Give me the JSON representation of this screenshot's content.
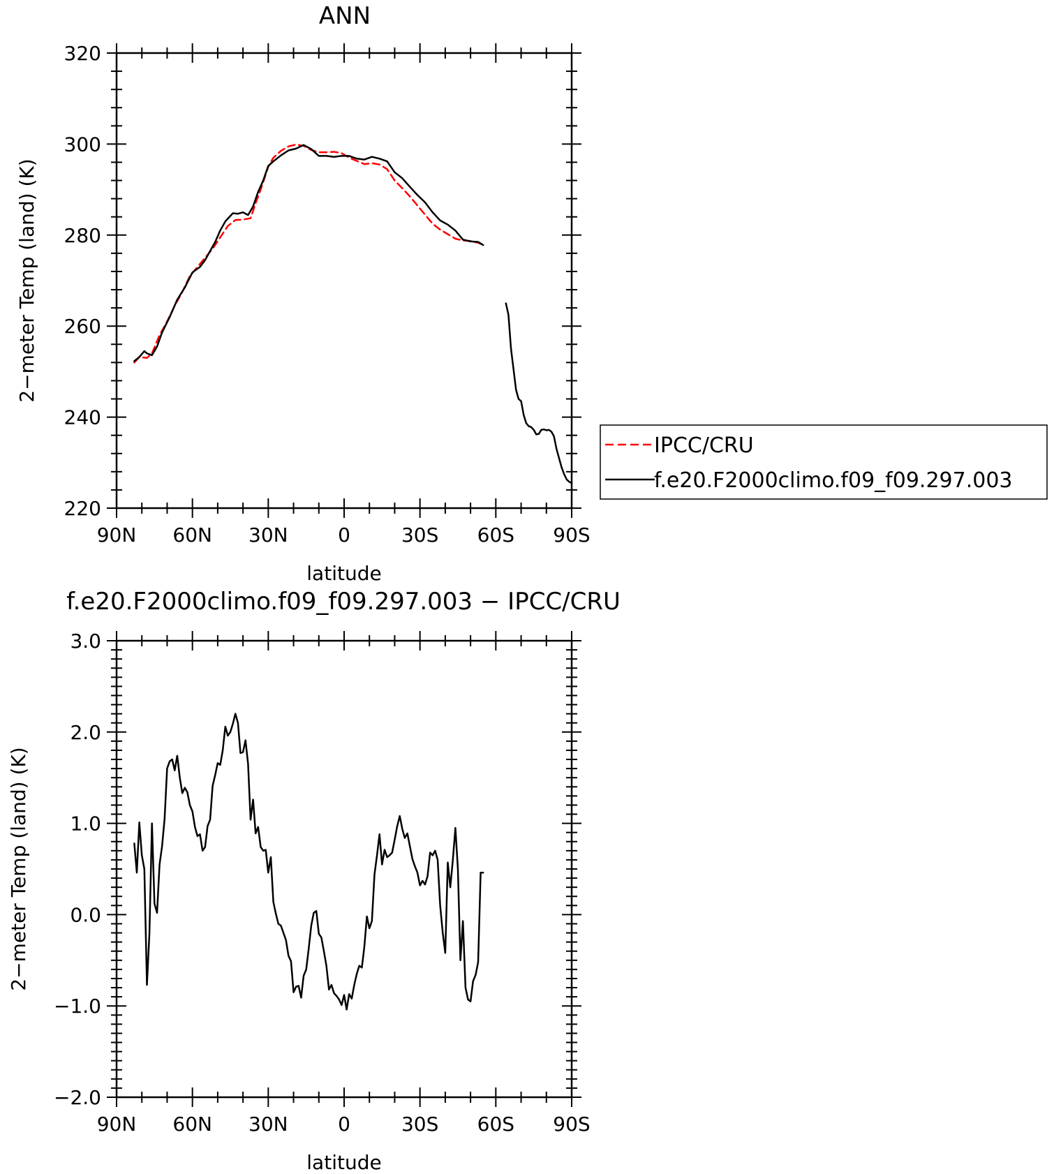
{
  "chart_data": [
    {
      "type": "line",
      "title": "ANN",
      "xlabel": "latitude",
      "ylabel": "2−meter Temp (land) (K)",
      "xlim": [
        90,
        -90
      ],
      "ylim": [
        220,
        320
      ],
      "x_ticks": [
        90,
        60,
        30,
        0,
        -30,
        -60,
        -90
      ],
      "x_tick_labels": [
        "90N",
        "60N",
        "30N",
        "0",
        "30S",
        "60S",
        "90S"
      ],
      "y_ticks": [
        220,
        240,
        260,
        280,
        300,
        320
      ],
      "y_tick_labels": [
        "220",
        "240",
        "260",
        "280",
        "300",
        "320"
      ],
      "grid": false,
      "legend_position": "right",
      "series": [
        {
          "name": "IPCC/CRU",
          "color": "#ff0000",
          "dash": "dashed",
          "x": [
            83,
            81,
            78,
            76,
            73,
            70,
            67,
            64,
            61,
            58,
            55,
            52,
            49,
            46,
            43,
            40,
            37,
            35,
            33,
            30,
            28,
            25,
            22,
            19,
            16,
            13,
            10,
            7,
            4,
            1,
            -2,
            -5,
            -8,
            -11,
            -14,
            -17,
            -20,
            -23,
            -26,
            -29,
            -32,
            -35,
            -38,
            -41,
            -44,
            -47,
            -50,
            -53,
            -55
          ],
          "values": [
            252.0,
            253.2,
            253.0,
            254.0,
            258.0,
            261.0,
            264.5,
            267.5,
            271.0,
            273.0,
            275.0,
            277.0,
            279.5,
            282.0,
            283.3,
            283.4,
            283.7,
            287.0,
            290.0,
            295.0,
            297.0,
            298.5,
            299.5,
            299.9,
            299.6,
            298.7,
            298.2,
            298.2,
            298.3,
            298.0,
            297.0,
            296.3,
            295.6,
            295.8,
            295.5,
            294.5,
            292.0,
            290.3,
            288.5,
            286.5,
            284.5,
            282.5,
            281.2,
            280.2,
            279.2,
            278.8,
            278.7,
            278.3,
            277.9
          ]
        },
        {
          "name": "f.e20.F2000climo.f09_f09.297.003",
          "color": "#000000",
          "dash": "solid",
          "x": [
            83,
            81,
            79,
            78,
            76,
            74,
            72,
            69,
            66,
            63,
            60,
            57,
            55,
            53,
            51,
            49,
            47,
            45,
            44,
            42,
            40,
            38,
            36,
            34,
            32,
            30,
            28,
            25,
            22,
            19,
            16,
            13,
            10,
            7,
            4,
            1,
            -2,
            -5,
            -8,
            -11,
            -14,
            -17,
            -20,
            -23,
            -26,
            -29,
            -32,
            -35,
            -38,
            -41,
            -44,
            -47,
            -50,
            -53,
            -55
          ],
          "values": [
            252.3,
            253.2,
            254.5,
            254.0,
            253.6,
            255.5,
            258.6,
            262.0,
            265.8,
            268.5,
            271.8,
            273.0,
            274.5,
            276.5,
            278.5,
            281.0,
            283.0,
            284.2,
            284.8,
            284.7,
            285.0,
            284.4,
            286.3,
            289.5,
            292.0,
            295.2,
            296.2,
            297.5,
            298.6,
            299.0,
            299.8,
            298.9,
            297.4,
            297.4,
            297.2,
            297.4,
            297.4,
            296.8,
            296.6,
            297.2,
            296.8,
            296.2,
            293.8,
            292.5,
            290.6,
            288.8,
            287.2,
            285.0,
            283.2,
            282.3,
            281.0,
            279.0,
            278.6,
            278.5,
            277.8
          ]
        },
        {
          "name": "f.e20.F2000climo.f09_f09.297.003",
          "color": "#000000",
          "dash": "solid",
          "x": [
            -64,
            -65,
            -66,
            -67,
            -68,
            -69,
            -70,
            -71,
            -72,
            -73,
            -74,
            -75,
            -76,
            -77,
            -78,
            -79,
            -80,
            -81,
            -82,
            -83,
            -84,
            -85,
            -86,
            -87,
            -88,
            -89,
            -90
          ],
          "values": [
            265.0,
            262.5,
            255.0,
            250.5,
            246.0,
            244.0,
            243.5,
            240.5,
            238.7,
            238.0,
            237.8,
            237.2,
            236.2,
            236.3,
            237.2,
            237.3,
            237.1,
            237.2,
            236.8,
            235.8,
            233.0,
            231.0,
            229.0,
            227.5,
            226.3,
            225.8,
            225.5
          ]
        }
      ]
    },
    {
      "type": "line",
      "title": "f.e20.F2000climo.f09_f09.297.003 − IPCC/CRU",
      "xlabel": "latitude",
      "ylabel": "2−meter Temp (land) (K)",
      "xlim": [
        90,
        -90
      ],
      "ylim": [
        -2.0,
        3.0
      ],
      "x_ticks": [
        90,
        60,
        30,
        0,
        -30,
        -60,
        -90
      ],
      "x_tick_labels": [
        "90N",
        "60N",
        "30N",
        "0",
        "30S",
        "60S",
        "90S"
      ],
      "y_ticks": [
        -2.0,
        -1.0,
        0.0,
        1.0,
        2.0,
        3.0
      ],
      "y_tick_labels": [
        "−2.0",
        "−1.0",
        "0.0",
        "1.0",
        "2.0",
        "3.0"
      ],
      "grid": false,
      "series": [
        {
          "color": "#000000",
          "dash": "solid",
          "x": [
            83,
            82,
            81,
            80,
            79,
            78,
            77,
            76,
            75,
            74,
            73,
            72,
            71,
            70,
            69,
            68,
            67,
            66,
            65,
            64,
            63,
            62,
            61,
            60,
            59,
            58,
            57,
            56,
            55,
            54,
            53,
            52,
            51,
            50,
            49,
            48,
            47,
            46,
            45,
            44,
            43,
            42,
            41,
            40,
            39,
            38,
            37,
            36,
            35,
            34,
            33,
            32,
            31,
            30,
            29,
            28,
            27,
            26,
            25,
            24,
            23,
            22,
            21,
            20,
            19,
            18,
            17,
            16,
            15,
            14,
            13,
            12,
            11,
            10,
            9,
            8,
            7,
            6,
            5,
            4,
            3,
            2,
            1,
            0,
            -1,
            -2,
            -3,
            -4,
            -5,
            -6,
            -7,
            -8,
            -9,
            -10,
            -11,
            -12,
            -13,
            -14,
            -15,
            -16,
            -17,
            -18,
            -19,
            -20,
            -21,
            -22,
            -23,
            -24,
            -25,
            -26,
            -27,
            -28,
            -29,
            -30,
            -31,
            -32,
            -33,
            -34,
            -35,
            -36,
            -37,
            -38,
            -39,
            -40,
            -41,
            -42,
            -43,
            -44,
            -45,
            -46,
            -47,
            -48,
            -49,
            -50,
            -51,
            -52,
            -53,
            -54,
            -55
          ],
          "values": [
            0.78,
            0.46,
            1.01,
            0.65,
            0.5,
            -0.77,
            -0.2,
            1.0,
            0.12,
            0.02,
            0.55,
            0.75,
            1.05,
            1.6,
            1.68,
            1.7,
            1.58,
            1.74,
            1.5,
            1.33,
            1.39,
            1.34,
            1.2,
            1.13,
            0.96,
            0.86,
            0.88,
            0.7,
            0.74,
            0.97,
            1.04,
            1.41,
            1.53,
            1.66,
            1.64,
            1.8,
            2.06,
            1.96,
            2.0,
            2.09,
            2.2,
            2.1,
            1.77,
            1.78,
            1.91,
            1.65,
            1.04,
            1.26,
            0.89,
            0.96,
            0.74,
            0.7,
            0.71,
            0.46,
            0.63,
            0.14,
            0.01,
            -0.1,
            -0.12,
            -0.2,
            -0.28,
            -0.45,
            -0.51,
            -0.85,
            -0.79,
            -0.78,
            -0.91,
            -0.67,
            -0.6,
            -0.37,
            -0.12,
            0.02,
            0.04,
            -0.21,
            -0.25,
            -0.4,
            -0.56,
            -0.82,
            -0.77,
            -0.86,
            -0.89,
            -0.93,
            -0.99,
            -0.88,
            -1.04,
            -0.87,
            -0.92,
            -0.77,
            -0.65,
            -0.56,
            -0.58,
            -0.35,
            -0.02,
            -0.15,
            -0.07,
            0.44,
            0.65,
            0.88,
            0.55,
            0.71,
            0.63,
            0.65,
            0.68,
            0.82,
            0.97,
            1.08,
            0.94,
            0.84,
            0.89,
            0.75,
            0.61,
            0.53,
            0.46,
            0.32,
            0.37,
            0.33,
            0.42,
            0.68,
            0.65,
            0.7,
            0.6,
            0.1,
            -0.2,
            -0.42,
            0.57,
            0.3,
            0.6,
            0.95,
            0.5,
            -0.5,
            -0.07,
            -0.8,
            -0.93,
            -0.95,
            -0.73,
            -0.66,
            -0.52,
            0.46,
            0.46
          ]
        }
      ]
    }
  ],
  "legend": {
    "items": [
      {
        "label": "IPCC/CRU",
        "color": "#ff0000",
        "dash": "dashed"
      },
      {
        "label": "f.e20.F2000climo.f09_f09.297.003",
        "color": "#000000",
        "dash": "solid"
      }
    ]
  }
}
